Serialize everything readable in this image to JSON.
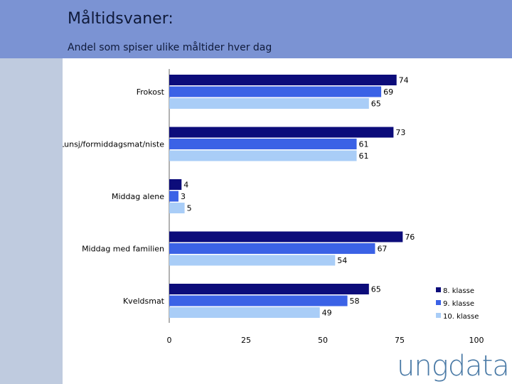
{
  "header": {
    "title": "Måltidsvaner:",
    "subtitle": "Andel som spiser ulike måltider hver dag"
  },
  "logo_text": "ungdata",
  "chart_data": {
    "type": "bar",
    "orientation": "horizontal",
    "categories": [
      "Frokost",
      "Lunsj/formiddagsmat/niste",
      "Middag alene",
      "Middag med familien",
      "Kveldsmat"
    ],
    "series": [
      {
        "name": "8. klasse",
        "values": [
          74,
          73,
          4,
          76,
          65
        ],
        "color": "#0c0c7a"
      },
      {
        "name": "9. klasse",
        "values": [
          69,
          61,
          3,
          67,
          58
        ],
        "color": "#3b62e6"
      },
      {
        "name": "10. klasse",
        "values": [
          65,
          61,
          5,
          54,
          49
        ],
        "color": "#a9cdf7"
      }
    ],
    "xlim": [
      0,
      100
    ],
    "xticks": [
      0,
      25,
      50,
      75,
      100
    ],
    "legend_position": "bottom-right",
    "grid": false
  }
}
